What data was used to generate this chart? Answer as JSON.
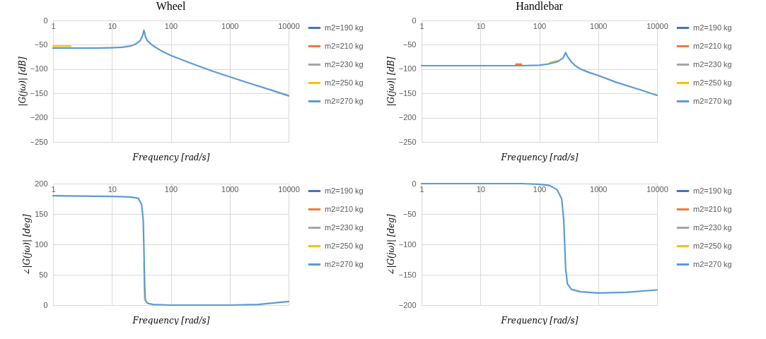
{
  "chart_data": [
    {
      "type": "line",
      "title": "Wheel",
      "xlabel": "Frequency [rad/s]",
      "ylabel": "|G(jω)| [dB]",
      "log": "x",
      "grid": true,
      "legend": "right",
      "xlim": [
        1,
        10000
      ],
      "xticks": [
        1,
        10,
        100,
        1000,
        10000
      ],
      "ylim": [
        -250,
        0
      ],
      "yticks": [
        -250,
        -200,
        -150,
        -100,
        -50,
        0
      ],
      "x": [
        1,
        2,
        5,
        10,
        15,
        20,
        25,
        30,
        33,
        35,
        37,
        40,
        50,
        70,
        100,
        200,
        500,
        1000,
        2000,
        5000,
        10000
      ],
      "series": [
        {
          "name": "m2=190 kg",
          "color": "#4472c4",
          "values": [
            null,
            null,
            null,
            null,
            null,
            null,
            null,
            null,
            null,
            null,
            null,
            null,
            null,
            null,
            null,
            null,
            null,
            null,
            null,
            null,
            null
          ]
        },
        {
          "name": "m2=210 kg",
          "color": "#ed7d31",
          "values": [
            null,
            null,
            null,
            null,
            null,
            null,
            null,
            null,
            null,
            null,
            null,
            null,
            null,
            null,
            null,
            null,
            null,
            null,
            null,
            null,
            null
          ]
        },
        {
          "name": "m2=230 kg",
          "color": "#a5a5a5",
          "values": [
            null,
            null,
            null,
            null,
            null,
            null,
            null,
            null,
            null,
            null,
            null,
            null,
            null,
            null,
            null,
            null,
            null,
            null,
            null,
            null,
            null
          ]
        },
        {
          "name": "m2=250 kg",
          "color": "#ffc000",
          "values": [
            -53,
            -53,
            null,
            null,
            null,
            null,
            null,
            null,
            null,
            null,
            null,
            null,
            null,
            null,
            null,
            null,
            null,
            null,
            null,
            null,
            null
          ]
        },
        {
          "name": "m2=270 kg",
          "color": "#5b9bd5",
          "values": [
            -57,
            -57,
            -57,
            -56,
            -55,
            -53,
            -49,
            -42,
            -32,
            -20,
            -33,
            -42,
            -52,
            -63,
            -72,
            -86,
            -104,
            -116,
            -128,
            -143,
            -155
          ]
        }
      ]
    },
    {
      "type": "line",
      "title": "Handlebar",
      "xlabel": "Frequency [rad/s]",
      "ylabel": "|G(jω)| [dB]",
      "log": "x",
      "grid": true,
      "legend": "right",
      "xlim": [
        1,
        10000
      ],
      "xticks": [
        1,
        10,
        100,
        1000,
        10000
      ],
      "ylim": [
        -250,
        0
      ],
      "yticks": [
        -250,
        -200,
        -150,
        -100,
        -50,
        0
      ],
      "x": [
        1,
        10,
        40,
        50,
        100,
        150,
        200,
        250,
        280,
        300,
        350,
        400,
        500,
        700,
        1000,
        2000,
        5000,
        10000
      ],
      "series": [
        {
          "name": "m2=190 kg",
          "color": "#4472c4",
          "values": [
            null,
            null,
            null,
            null,
            null,
            null,
            null,
            null,
            null,
            null,
            null,
            null,
            null,
            null,
            null,
            null,
            null,
            null
          ]
        },
        {
          "name": "m2=210 kg",
          "color": "#ed7d31",
          "values": [
            null,
            null,
            -90,
            -90,
            null,
            null,
            null,
            null,
            null,
            null,
            null,
            null,
            null,
            null,
            null,
            null,
            null,
            null
          ]
        },
        {
          "name": "m2=230 kg",
          "color": "#a5a5a5",
          "values": [
            null,
            null,
            null,
            null,
            null,
            null,
            null,
            null,
            null,
            null,
            null,
            null,
            null,
            null,
            null,
            null,
            null,
            null
          ]
        },
        {
          "name": "m2=250 kg",
          "color": "#ffc000",
          "values": [
            null,
            null,
            null,
            null,
            null,
            -87,
            -83,
            null,
            null,
            null,
            null,
            null,
            null,
            null,
            null,
            null,
            null,
            null
          ]
        },
        {
          "name": "m2=270 kg",
          "color": "#5b9bd5",
          "values": [
            -93,
            -93,
            -93,
            -93,
            -92,
            -89,
            -85,
            -78,
            -66,
            -74,
            -85,
            -92,
            -100,
            -107,
            -113,
            -127,
            -142,
            -154
          ]
        }
      ]
    },
    {
      "type": "line",
      "xlabel": "Frequency [rad/s]",
      "ylabel": "∠|G(jω)| [deg]",
      "log": "x",
      "grid": true,
      "legend": "right",
      "xlim": [
        1,
        10000
      ],
      "xticks": [
        1,
        10,
        100,
        1000,
        10000
      ],
      "ylim": [
        0,
        200
      ],
      "yticks": [
        0,
        50,
        100,
        150,
        200
      ],
      "x": [
        1,
        10,
        20,
        28,
        32,
        34,
        35,
        36,
        37,
        40,
        50,
        100,
        1000,
        3000,
        5000,
        10000
      ],
      "series": [
        {
          "name": "m2=190 kg",
          "color": "#4472c4",
          "values": [
            null,
            null,
            null,
            null,
            null,
            null,
            null,
            null,
            null,
            null,
            null,
            null,
            null,
            null,
            null,
            null
          ]
        },
        {
          "name": "m2=210 kg",
          "color": "#ed7d31",
          "values": [
            null,
            null,
            null,
            null,
            null,
            null,
            null,
            null,
            null,
            null,
            null,
            null,
            null,
            null,
            null,
            null
          ]
        },
        {
          "name": "m2=230 kg",
          "color": "#a5a5a5",
          "values": [
            null,
            null,
            null,
            null,
            null,
            null,
            null,
            null,
            null,
            null,
            null,
            null,
            null,
            null,
            null,
            null
          ]
        },
        {
          "name": "m2=250 kg",
          "color": "#ffc000",
          "values": [
            null,
            null,
            null,
            null,
            null,
            null,
            70,
            10,
            null,
            null,
            null,
            null,
            null,
            null,
            null,
            null
          ]
        },
        {
          "name": "m2=270 kg",
          "color": "#5b9bd5",
          "values": [
            180,
            179,
            178,
            176,
            165,
            140,
            90,
            30,
            8,
            3,
            1,
            0,
            0,
            1,
            3,
            6
          ]
        }
      ]
    },
    {
      "type": "line",
      "xlabel": "Frequency [rad/s]",
      "ylabel": "∠|G(jω)| [deg]",
      "log": "x",
      "grid": true,
      "legend": "right",
      "xlim": [
        1,
        10000
      ],
      "xticks": [
        1,
        10,
        100,
        1000,
        10000
      ],
      "ylim": [
        -200,
        0
      ],
      "yticks": [
        -200,
        -150,
        -100,
        -50,
        0
      ],
      "x": [
        1,
        50,
        100,
        150,
        200,
        240,
        260,
        270,
        280,
        300,
        350,
        500,
        1000,
        3000,
        10000
      ],
      "series": [
        {
          "name": "m2=190 kg",
          "color": "#4472c4",
          "values": [
            null,
            null,
            null,
            null,
            null,
            null,
            null,
            null,
            null,
            null,
            null,
            null,
            null,
            null,
            null
          ]
        },
        {
          "name": "m2=210 kg",
          "color": "#ed7d31",
          "values": [
            null,
            null,
            null,
            null,
            null,
            null,
            null,
            null,
            null,
            null,
            null,
            null,
            null,
            null,
            null
          ]
        },
        {
          "name": "m2=230 kg",
          "color": "#a5a5a5",
          "values": [
            null,
            null,
            null,
            null,
            null,
            null,
            null,
            null,
            null,
            null,
            null,
            null,
            null,
            null,
            null
          ]
        },
        {
          "name": "m2=250 kg",
          "color": "#ffc000",
          "values": [
            null,
            null,
            null,
            null,
            null,
            null,
            null,
            null,
            null,
            null,
            null,
            null,
            null,
            null,
            null
          ]
        },
        {
          "name": "m2=270 kg",
          "color": "#5b9bd5",
          "values": [
            0,
            0,
            -1,
            -3,
            -10,
            -25,
            -60,
            -100,
            -140,
            -165,
            -174,
            -178,
            -180,
            -179,
            -175
          ]
        }
      ]
    }
  ]
}
